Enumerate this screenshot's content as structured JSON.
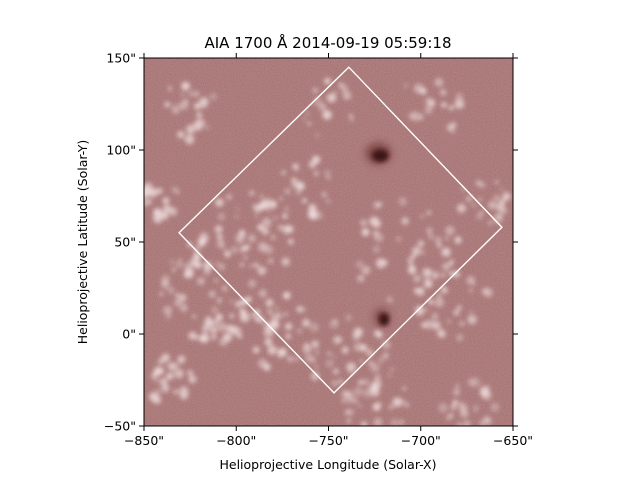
{
  "figure": {
    "title": "AIA 1700 Å 2014-09-19 05:59:18",
    "xlabel": "Helioprojective Longitude (Solar-X)",
    "ylabel": "Helioprojective Latitude (Solar-Y)"
  },
  "axes": {
    "x_ticks": [
      {
        "value": -850,
        "label": "−850\""
      },
      {
        "value": -800,
        "label": "−800\""
      },
      {
        "value": -750,
        "label": "−750\""
      },
      {
        "value": -700,
        "label": "−700\""
      },
      {
        "value": -650,
        "label": "−650\""
      }
    ],
    "y_ticks": [
      {
        "value": -50,
        "label": "−50\""
      },
      {
        "value": 0,
        "label": "0\""
      },
      {
        "value": 50,
        "label": "50\""
      },
      {
        "value": 100,
        "label": "100\""
      },
      {
        "value": 150,
        "label": "150\""
      }
    ],
    "xlim": [
      -850,
      -650
    ],
    "ylim": [
      -50,
      150
    ]
  },
  "overlay": {
    "shape": "rotated-square",
    "color": "#ffffff",
    "vertices_arcsec": [
      [
        -739,
        145
      ],
      [
        -656,
        58
      ],
      [
        -747,
        -32
      ],
      [
        -831,
        55
      ]
    ]
  },
  "features": {
    "sunspots_arcsec": [
      {
        "x": -723,
        "y": 98
      },
      {
        "x": -721,
        "y": 9
      }
    ]
  },
  "colors": {
    "background_map": "#a26b6b",
    "bright_plage": "#ead5d5",
    "sunspot": "#3d1212"
  }
}
